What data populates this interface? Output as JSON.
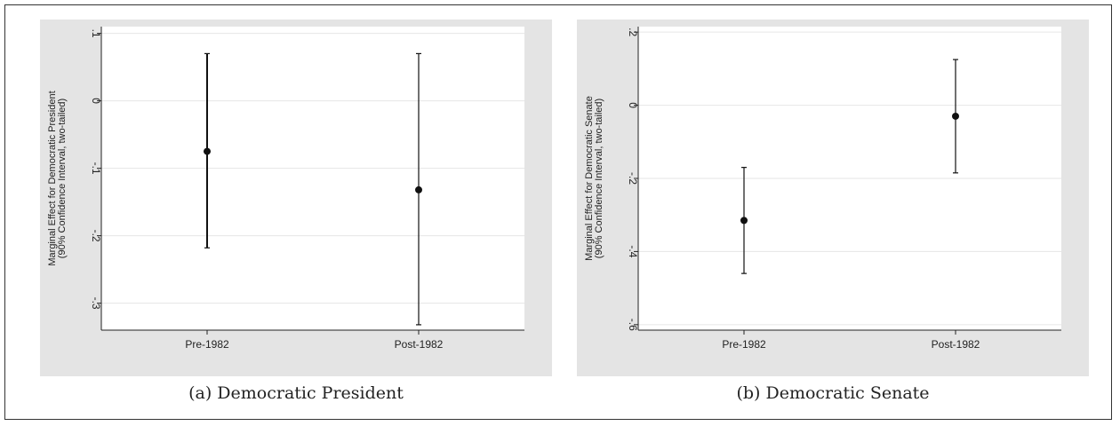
{
  "chart_data": [
    {
      "type": "scatter",
      "panel": "a",
      "caption": "(a) Democratic President",
      "ylabel_lines": [
        "Marginal Effect for Democratic President",
        "(90% Confidence Interval, two-tailed)"
      ],
      "categories": [
        "Pre-1982",
        "Post-1982"
      ],
      "estimates": [
        -0.075,
        -0.132
      ],
      "ci_lower": [
        -0.218,
        -0.332
      ],
      "ci_upper": [
        0.07,
        0.07
      ],
      "yticks": [
        -0.3,
        -0.2,
        -0.1,
        0,
        0.1
      ],
      "ytick_labels": [
        "-.3",
        "-.2",
        "-.1",
        "0",
        ".1"
      ],
      "ylim": [
        -0.34,
        0.11
      ],
      "grid": true
    },
    {
      "type": "scatter",
      "panel": "b",
      "caption": "(b) Democratic Senate",
      "ylabel_lines": [
        "Marginal Effect for Democratic Senate",
        "(90% Confidence Interval, two-tailed)"
      ],
      "categories": [
        "Pre-1982",
        "Post-1982"
      ],
      "estimates": [
        -0.315,
        -0.03
      ],
      "ci_lower": [
        -0.46,
        -0.185
      ],
      "ci_upper": [
        -0.17,
        0.125
      ],
      "yticks": [
        -0.6,
        -0.4,
        -0.2,
        0,
        0.2
      ],
      "ytick_labels": [
        "-.6",
        "-.4",
        "-.2",
        "0",
        ".2"
      ],
      "ylim": [
        -0.615,
        0.215
      ],
      "grid": true
    }
  ]
}
